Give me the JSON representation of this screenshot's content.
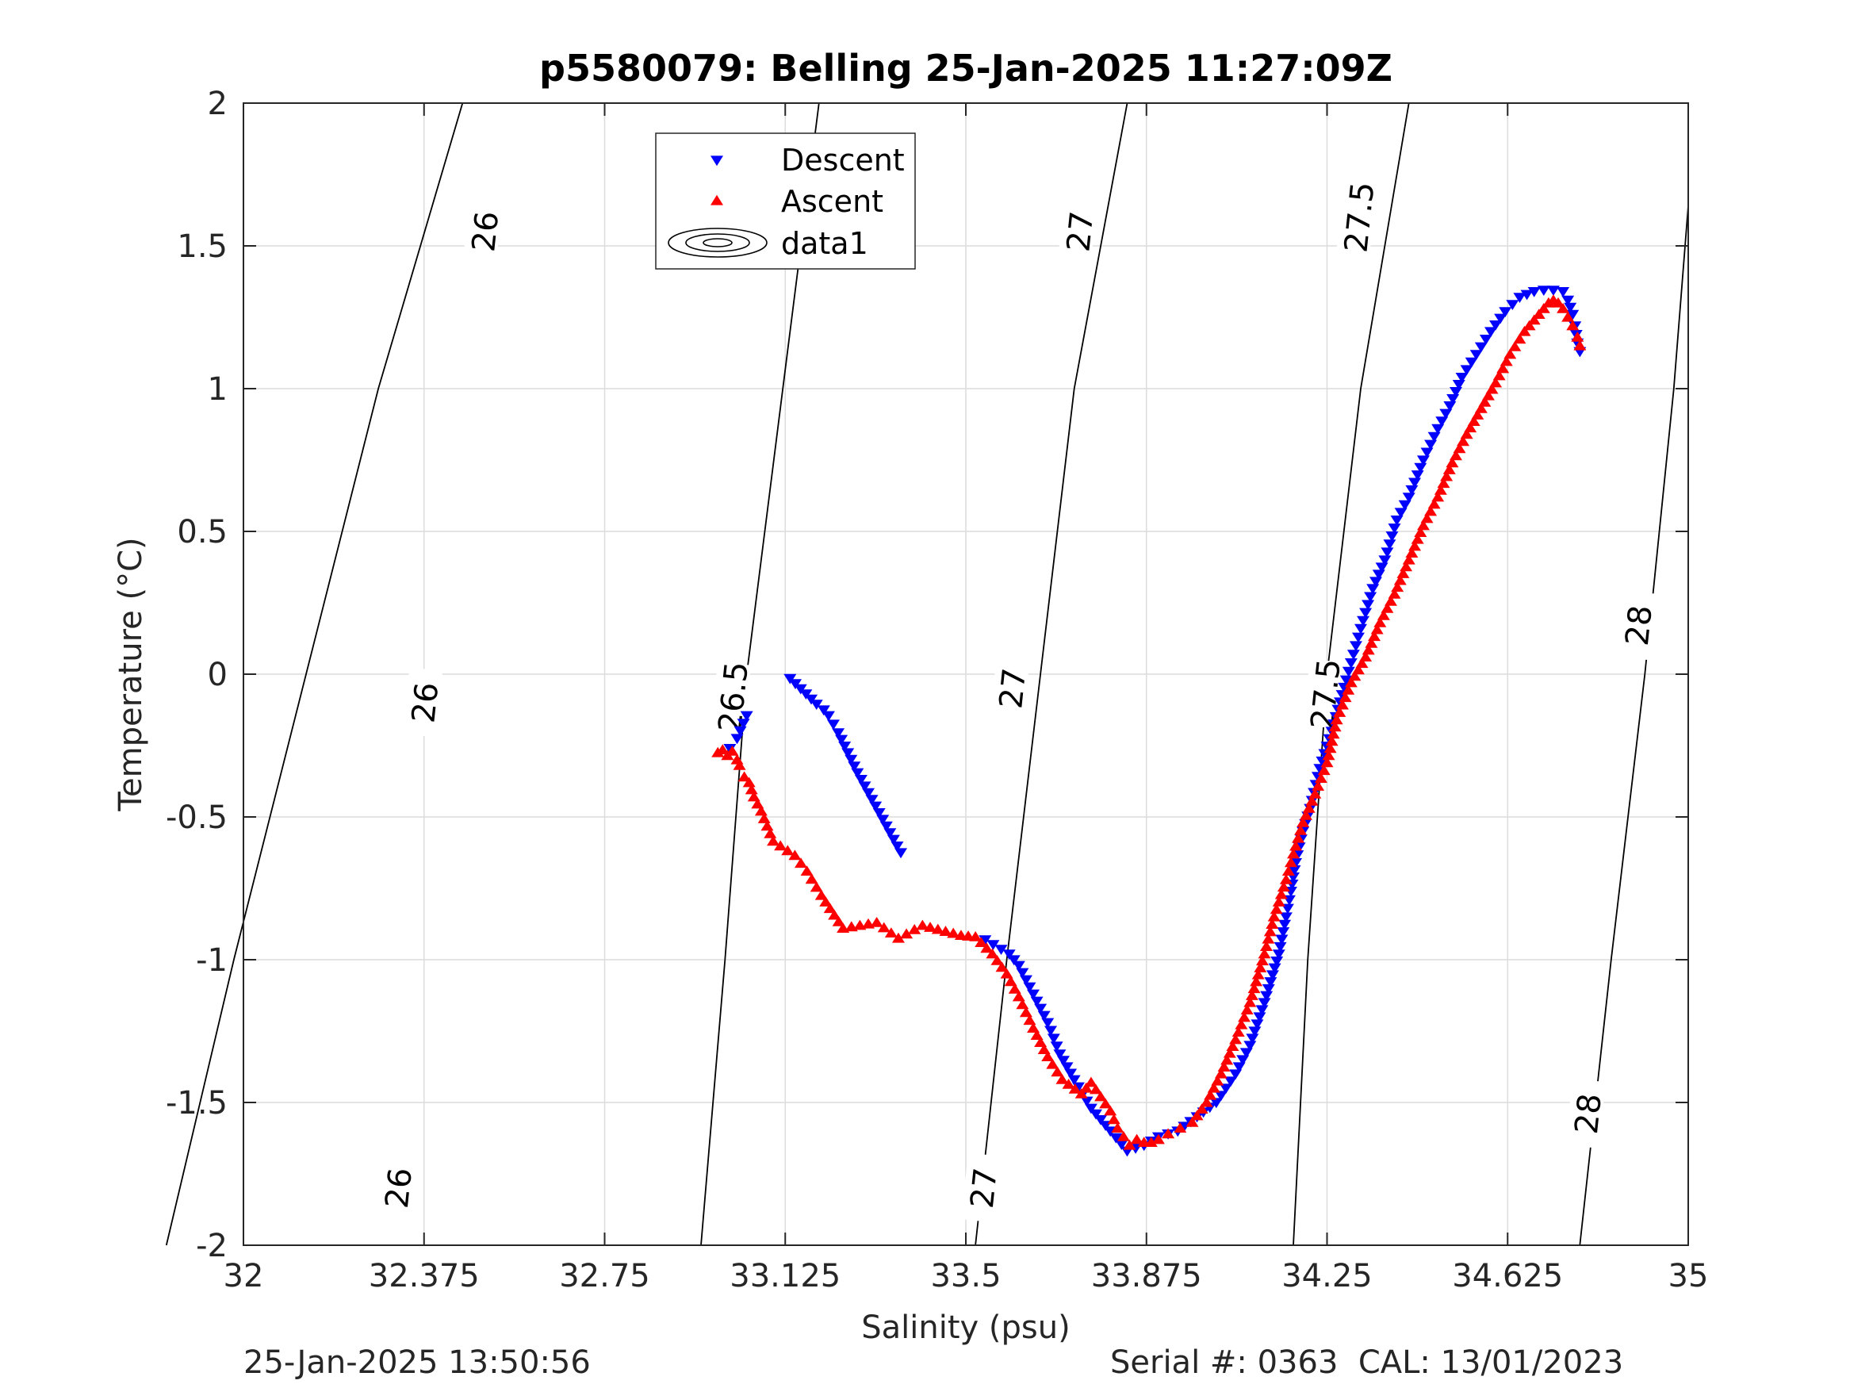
{
  "chart_data": {
    "type": "scatter",
    "title": "p5580079: Belling 25-Jan-2025 11:27:09Z",
    "xlabel": "Salinity (psu)",
    "ylabel": "Temperature (°C)",
    "xlim": [
      32,
      35
    ],
    "ylim": [
      -2,
      2
    ],
    "grid": true,
    "legend_position": "top-center",
    "x_ticks": [
      32,
      32.375,
      32.75,
      33.125,
      33.5,
      33.875,
      34.25,
      34.625,
      35
    ],
    "x_tick_labels": [
      "32",
      "32.375",
      "32.75",
      "33.125",
      "33.5",
      "33.875",
      "34.25",
      "34.625",
      "35"
    ],
    "y_ticks": [
      -2,
      -1.5,
      -1,
      -0.5,
      0,
      0.5,
      1,
      1.5,
      2
    ],
    "y_tick_labels": [
      "-2",
      "-1.5",
      "-1",
      "-0.5",
      "0",
      "0.5",
      "1",
      "1.5",
      "2"
    ],
    "series": [
      {
        "name": "Descent",
        "marker": "triangle-down",
        "color": "#0000ff",
        "x": [
          33.135,
          33.19,
          33.205,
          33.215,
          33.235,
          33.275,
          33.365,
          33.045,
          33.025,
          33.01,
          33.54,
          33.59,
          33.61,
          33.67,
          33.695,
          33.725,
          33.76,
          33.8,
          33.835,
          33.87,
          33.9,
          33.94,
          33.98,
          34.02,
          34.06,
          34.09,
          34.12,
          34.15,
          34.165,
          34.175,
          34.185,
          34.2,
          34.215,
          34.235,
          34.26,
          34.29,
          34.305,
          34.32,
          34.345,
          34.37,
          34.395,
          34.42,
          34.45,
          34.48,
          34.505,
          34.53,
          34.56,
          34.59,
          34.62,
          34.65,
          34.68,
          34.7,
          34.72,
          34.74,
          34.75,
          34.76,
          34.765,
          34.77,
          34.775
        ],
        "y": [
          -0.015,
          -0.105,
          -0.125,
          -0.145,
          -0.205,
          -0.345,
          -0.625,
          -0.145,
          -0.225,
          -0.26,
          -0.93,
          -0.98,
          -1.02,
          -1.22,
          -1.33,
          -1.42,
          -1.52,
          -1.6,
          -1.67,
          -1.65,
          -1.62,
          -1.6,
          -1.55,
          -1.5,
          -1.4,
          -1.3,
          -1.15,
          -0.98,
          -0.85,
          -0.76,
          -0.66,
          -0.55,
          -0.47,
          -0.33,
          -0.2,
          -0.02,
          0.07,
          0.16,
          0.3,
          0.4,
          0.54,
          0.62,
          0.75,
          0.86,
          0.94,
          1.04,
          1.12,
          1.2,
          1.27,
          1.32,
          1.34,
          1.345,
          1.345,
          1.34,
          1.31,
          1.26,
          1.22,
          1.16,
          1.13
        ]
      },
      {
        "name": "Ascent",
        "marker": "triangle-up",
        "color": "#ff0000",
        "x": [
          32.985,
          32.995,
          33.005,
          33.015,
          33.025,
          33.03,
          33.04,
          33.05,
          33.06,
          33.075,
          33.1,
          33.145,
          33.17,
          33.2,
          33.245,
          33.315,
          33.36,
          33.41,
          33.49,
          33.52,
          33.555,
          33.585,
          33.61,
          33.64,
          33.67,
          33.7,
          33.74,
          33.76,
          33.8,
          33.815,
          33.84,
          33.855,
          33.87,
          33.885,
          33.9,
          33.92,
          33.945,
          33.97,
          34.0,
          34.03,
          34.06,
          34.09,
          34.12,
          34.14,
          34.165,
          34.18,
          34.2,
          34.225,
          34.25,
          34.27,
          34.3,
          34.33,
          34.36,
          34.39,
          34.42,
          34.45,
          34.48,
          34.51,
          34.54,
          34.57,
          34.6,
          34.63,
          34.66,
          34.69,
          34.71,
          34.72,
          34.73,
          34.74,
          34.75,
          34.76,
          34.77,
          34.775
        ],
        "y": [
          -0.275,
          -0.265,
          -0.285,
          -0.27,
          -0.3,
          -0.32,
          -0.36,
          -0.38,
          -0.43,
          -0.48,
          -0.585,
          -0.635,
          -0.69,
          -0.775,
          -0.89,
          -0.87,
          -0.925,
          -0.88,
          -0.915,
          -0.92,
          -0.98,
          -1.05,
          -1.13,
          -1.24,
          -1.34,
          -1.42,
          -1.47,
          -1.43,
          -1.53,
          -1.59,
          -1.65,
          -1.63,
          -1.64,
          -1.64,
          -1.63,
          -1.61,
          -1.59,
          -1.57,
          -1.5,
          -1.4,
          -1.28,
          -1.15,
          -0.98,
          -0.85,
          -0.72,
          -0.63,
          -0.52,
          -0.42,
          -0.31,
          -0.16,
          -0.03,
          0.06,
          0.18,
          0.28,
          0.4,
          0.52,
          0.62,
          0.74,
          0.84,
          0.93,
          1.02,
          1.12,
          1.2,
          1.26,
          1.3,
          1.31,
          1.3,
          1.28,
          1.25,
          1.22,
          1.18,
          1.15
        ]
      },
      {
        "name": "data1",
        "marker": "contour",
        "color": "#000000",
        "isopycnals": [
          {
            "level": "26",
            "points": [
              [
                31.84,
                -2.0
              ],
              [
                31.98,
                -1.0
              ],
              [
                32.13,
                0.0
              ],
              [
                32.28,
                1.0
              ],
              [
                32.455,
                2.0
              ]
            ],
            "label_positions": [
              [
                32.325,
                -1.8
              ],
              [
                32.38,
                -0.1
              ],
              [
                32.505,
                1.55
              ]
            ]
          },
          {
            "level": "26.5",
            "points": [
              [
                32.95,
                -2.0
              ],
              [
                33.0,
                -1.0
              ],
              [
                33.045,
                0.0
              ],
              [
                33.12,
                1.0
              ],
              [
                33.195,
                2.0
              ]
            ],
            "label_positions": [
              [
                33.02,
                -0.08
              ],
              [
                33.14,
                1.55
              ]
            ]
          },
          {
            "level": "27",
            "points": [
              [
                33.52,
                -2.0
              ],
              [
                33.585,
                -1.0
              ],
              [
                33.655,
                0.0
              ],
              [
                33.725,
                1.0
              ],
              [
                33.835,
                2.0
              ]
            ],
            "label_positions": [
              [
                33.54,
                -1.8
              ],
              [
                33.6,
                -0.05
              ],
              [
                33.74,
                1.55
              ]
            ]
          },
          {
            "level": "27.5",
            "points": [
              [
                34.18,
                -2.0
              ],
              [
                34.21,
                -1.0
              ],
              [
                34.25,
                0.0
              ],
              [
                34.32,
                1.0
              ],
              [
                34.42,
                2.0
              ]
            ],
            "label_positions": [
              [
                34.25,
                -0.07
              ],
              [
                34.32,
                1.6
              ]
            ]
          },
          {
            "level": "28",
            "points": [
              [
                34.775,
                -2.0
              ],
              [
                34.84,
                -1.0
              ],
              [
                34.91,
                0.0
              ],
              [
                34.97,
                1.0
              ],
              [
                35.0,
                1.64
              ]
            ],
            "label_positions": [
              [
                34.795,
                -1.54
              ],
              [
                34.9,
                0.17
              ]
            ]
          }
        ]
      }
    ]
  },
  "footer": {
    "timestamp": "25-Jan-2025 13:50:56",
    "serial_cal": "Serial #: 0363  CAL: 13/01/2023"
  }
}
